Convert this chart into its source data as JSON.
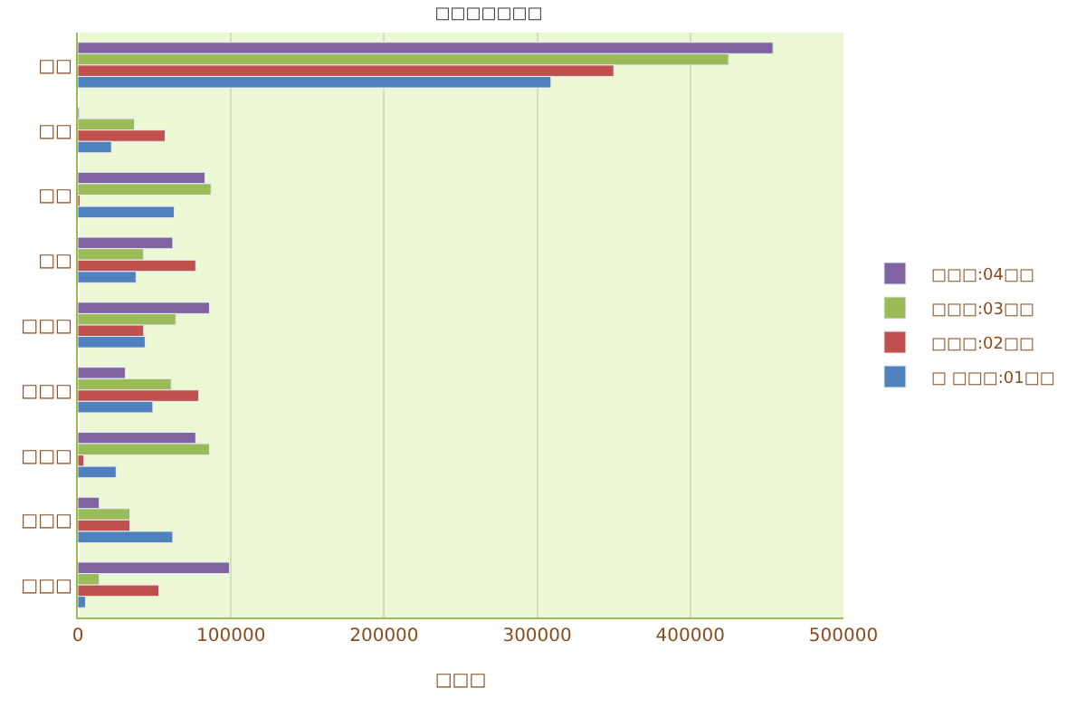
{
  "chart_data": {
    "type": "bar",
    "orientation": "horizontal",
    "title": "□□□□□□□",
    "xlabel": "□□□",
    "categories": [
      "□□",
      "□□",
      "□□",
      "□□",
      "□□□",
      "□□□",
      "□□□",
      "□□□",
      "□□□"
    ],
    "series": [
      {
        "name": "□□□:04□□",
        "color": "#8064a2",
        "values": [
          454000,
          1000,
          83000,
          62000,
          86000,
          31000,
          77000,
          14000,
          99000
        ]
      },
      {
        "name": "□□□:03□□",
        "color": "#9bbb59",
        "values": [
          425000,
          37000,
          87000,
          43000,
          64000,
          61000,
          86000,
          34000,
          14000
        ]
      },
      {
        "name": "□□□:02□□",
        "color": "#c0504d",
        "values": [
          350000,
          57000,
          1500,
          77000,
          43000,
          79000,
          4000,
          34000,
          53000
        ]
      },
      {
        "name": "□ □□□:01□□",
        "color": "#4f81bd",
        "values": [
          309000,
          22000,
          63000,
          38000,
          44000,
          49000,
          25000,
          62000,
          5000
        ]
      }
    ],
    "xlim": [
      0,
      500000
    ],
    "xticks": [
      0,
      100000,
      200000,
      300000,
      400000,
      500000
    ],
    "grid": "x",
    "legend": "right"
  }
}
